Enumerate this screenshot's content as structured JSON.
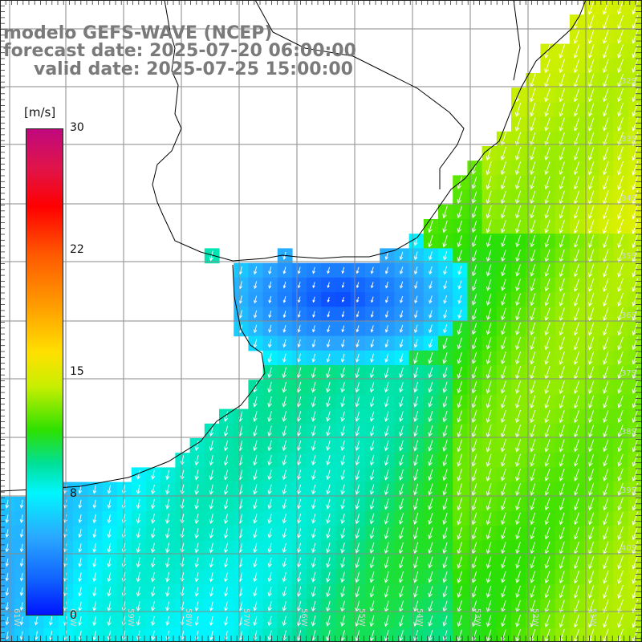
{
  "header": {
    "line1": "modelo GEFS-WAVE (NCEP)",
    "line2": "forecast date: 2025-07-20 06:00:00",
    "line3": "valid date: 2025-07-25 15:00:00"
  },
  "colorbar": {
    "unit": "[m/s]",
    "ticks": [
      "30",
      "22",
      "15",
      "8",
      "0"
    ],
    "colors": [
      "#c0087e",
      "#ff0000",
      "#ff9a00",
      "#ffe000",
      "#2de000",
      "#00f6ff",
      "#1060ff",
      "#0014ff"
    ]
  },
  "map": {
    "lat_labels": [
      "32S",
      "33S",
      "34S",
      "35S",
      "36S",
      "37S",
      "38S",
      "39S",
      "40S"
    ],
    "lon_labels": [
      "61W",
      "60W",
      "59W",
      "58W",
      "57W",
      "56W",
      "55W",
      "54W",
      "53W",
      "52W",
      "51W"
    ],
    "colors": {
      "land": "#ffffff",
      "coast": "#000000",
      "grid": "#888888",
      "arrows": "#ffffff"
    },
    "wind_direction": "from north-northeast"
  }
}
